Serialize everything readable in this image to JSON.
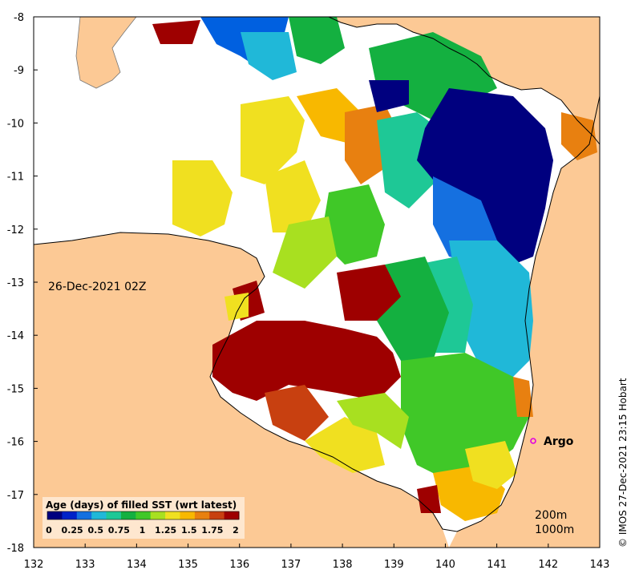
{
  "map": {
    "date_label": "26-Dec-2021 02Z",
    "credit": "© IMOS 27-Dec-2021 23:15 Hobart",
    "argo_label": "Argo",
    "x_ticks": [
      "132",
      "133",
      "134",
      "135",
      "136",
      "137",
      "138",
      "139",
      "140",
      "141",
      "142",
      "143"
    ],
    "y_ticks": [
      "-8",
      "-9",
      "-10",
      "-11",
      "-12",
      "-13",
      "-14",
      "-15",
      "-16",
      "-17",
      "-18"
    ],
    "legend": {
      "title": "Age (days) of filled SST (wrt latest)",
      "labels": [
        "0",
        "0.25",
        "0.5",
        "0.75",
        "1",
        "1.25",
        "1.5",
        "1.75",
        "2"
      ],
      "colors": [
        "#00007f",
        "#0022c8",
        "#1570e0",
        "#20b8d8",
        "#1ec896",
        "#14b040",
        "#40c828",
        "#a8e020",
        "#f0e020",
        "#f8b800",
        "#e88010",
        "#c84010",
        "#9e0000"
      ]
    },
    "depth_labels": [
      "200m",
      "1000m"
    ],
    "colors": {
      "land": "#fcc995",
      "argo_marker": "#e000e0"
    }
  }
}
